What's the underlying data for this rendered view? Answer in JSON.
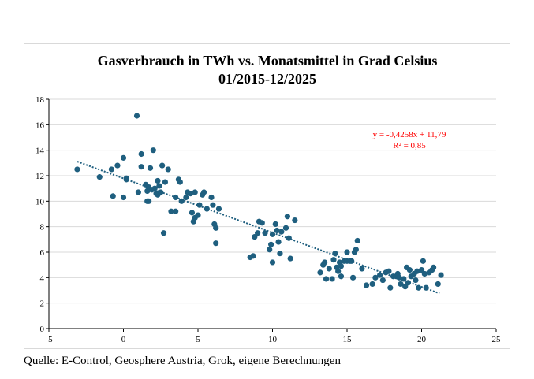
{
  "chart_data": {
    "type": "scatter",
    "title": "Gasverbrauch  in TWh  vs. Monatsmittel in Grad Celsius",
    "subtitle": "01/2015-12/2025",
    "xlim": [
      -5,
      25
    ],
    "ylim": [
      0,
      18
    ],
    "xticks": [
      -5,
      0,
      5,
      10,
      15,
      20,
      25
    ],
    "yticks": [
      0,
      2,
      4,
      6,
      8,
      10,
      12,
      14,
      16,
      18
    ],
    "grid": "horizontal",
    "marker_color": "#1f5f7f",
    "trend_color": "#1f5f7f",
    "trendline": {
      "slope": -0.4258,
      "intercept": 11.79,
      "x_range": [
        -3.1,
        21.2
      ]
    },
    "equation_text": "y = -0,4258x + 11,79",
    "r2_text": "R² = 0,85",
    "annotation_color": "#ff0000",
    "points": [
      [
        -3.1,
        12.5
      ],
      [
        -1.6,
        11.9
      ],
      [
        -0.8,
        12.5
      ],
      [
        -0.7,
        10.4
      ],
      [
        -0.4,
        12.8
      ],
      [
        0.0,
        13.4
      ],
      [
        0.0,
        10.3
      ],
      [
        0.2,
        11.7
      ],
      [
        0.2,
        11.8
      ],
      [
        0.9,
        16.7
      ],
      [
        1.0,
        10.7
      ],
      [
        1.2,
        13.7
      ],
      [
        1.2,
        12.7
      ],
      [
        1.5,
        11.3
      ],
      [
        1.6,
        10.8
      ],
      [
        1.6,
        10.0
      ],
      [
        1.7,
        11.1
      ],
      [
        1.7,
        10.0
      ],
      [
        1.8,
        12.6
      ],
      [
        1.9,
        10.9
      ],
      [
        2.0,
        14.0
      ],
      [
        2.1,
        11.0
      ],
      [
        2.2,
        10.6
      ],
      [
        2.3,
        11.6
      ],
      [
        2.3,
        10.5
      ],
      [
        2.4,
        11.2
      ],
      [
        2.5,
        10.7
      ],
      [
        2.6,
        12.8
      ],
      [
        2.7,
        7.5
      ],
      [
        2.8,
        11.5
      ],
      [
        3.0,
        12.5
      ],
      [
        3.2,
        9.2
      ],
      [
        3.5,
        9.2
      ],
      [
        3.5,
        10.3
      ],
      [
        3.7,
        11.7
      ],
      [
        3.8,
        11.5
      ],
      [
        3.9,
        10.0
      ],
      [
        4.2,
        10.3
      ],
      [
        4.3,
        10.7
      ],
      [
        4.5,
        10.6
      ],
      [
        4.6,
        9.1
      ],
      [
        4.7,
        8.4
      ],
      [
        4.8,
        10.7
      ],
      [
        4.8,
        8.7
      ],
      [
        5.0,
        8.9
      ],
      [
        5.1,
        9.7
      ],
      [
        5.3,
        10.5
      ],
      [
        5.4,
        10.7
      ],
      [
        5.6,
        9.4
      ],
      [
        5.9,
        10.3
      ],
      [
        6.0,
        9.7
      ],
      [
        6.1,
        8.2
      ],
      [
        6.2,
        7.9
      ],
      [
        6.2,
        6.7
      ],
      [
        6.4,
        9.4
      ],
      [
        8.5,
        5.6
      ],
      [
        8.7,
        5.7
      ],
      [
        8.8,
        7.2
      ],
      [
        9.0,
        7.5
      ],
      [
        9.1,
        8.4
      ],
      [
        9.3,
        8.3
      ],
      [
        9.5,
        7.5
      ],
      [
        9.8,
        6.2
      ],
      [
        9.9,
        6.6
      ],
      [
        10.0,
        5.2
      ],
      [
        10.0,
        7.4
      ],
      [
        10.2,
        8.2
      ],
      [
        10.3,
        7.7
      ],
      [
        10.4,
        6.8
      ],
      [
        10.5,
        5.9
      ],
      [
        10.6,
        7.6
      ],
      [
        10.9,
        7.9
      ],
      [
        11.0,
        8.8
      ],
      [
        11.1,
        7.1
      ],
      [
        11.2,
        5.5
      ],
      [
        11.5,
        8.5
      ],
      [
        13.2,
        4.4
      ],
      [
        13.4,
        5.0
      ],
      [
        13.5,
        5.2
      ],
      [
        13.6,
        3.9
      ],
      [
        13.8,
        4.7
      ],
      [
        14.0,
        3.9
      ],
      [
        14.1,
        5.4
      ],
      [
        14.2,
        5.9
      ],
      [
        14.3,
        4.8
      ],
      [
        14.4,
        4.5
      ],
      [
        14.5,
        5.2
      ],
      [
        14.6,
        4.9
      ],
      [
        14.6,
        4.1
      ],
      [
        14.8,
        5.3
      ],
      [
        15.0,
        5.3
      ],
      [
        15.0,
        6.0
      ],
      [
        15.2,
        5.3
      ],
      [
        15.3,
        5.3
      ],
      [
        15.4,
        4.0
      ],
      [
        15.5,
        6.0
      ],
      [
        15.6,
        6.2
      ],
      [
        15.7,
        6.9
      ],
      [
        16.0,
        4.7
      ],
      [
        16.3,
        3.4
      ],
      [
        16.7,
        3.5
      ],
      [
        16.9,
        4.0
      ],
      [
        17.2,
        4.2
      ],
      [
        17.4,
        3.8
      ],
      [
        17.6,
        4.4
      ],
      [
        17.8,
        4.5
      ],
      [
        17.9,
        3.2
      ],
      [
        18.1,
        4.1
      ],
      [
        18.3,
        4.1
      ],
      [
        18.4,
        4.3
      ],
      [
        18.5,
        4.0
      ],
      [
        18.6,
        3.5
      ],
      [
        18.8,
        3.9
      ],
      [
        18.9,
        3.3
      ],
      [
        19.0,
        4.8
      ],
      [
        19.1,
        3.6
      ],
      [
        19.2,
        4.6
      ],
      [
        19.3,
        4.1
      ],
      [
        19.5,
        4.3
      ],
      [
        19.6,
        3.8
      ],
      [
        19.7,
        4.5
      ],
      [
        19.8,
        3.2
      ],
      [
        20.0,
        4.6
      ],
      [
        20.1,
        5.3
      ],
      [
        20.2,
        4.3
      ],
      [
        20.3,
        3.2
      ],
      [
        20.5,
        4.4
      ],
      [
        20.7,
        4.6
      ],
      [
        20.8,
        4.8
      ],
      [
        21.1,
        3.5
      ],
      [
        21.3,
        4.2
      ]
    ]
  },
  "source_note": "Quelle: E-Control, Geosphere Austria, Grok, eigene Berechnungen"
}
